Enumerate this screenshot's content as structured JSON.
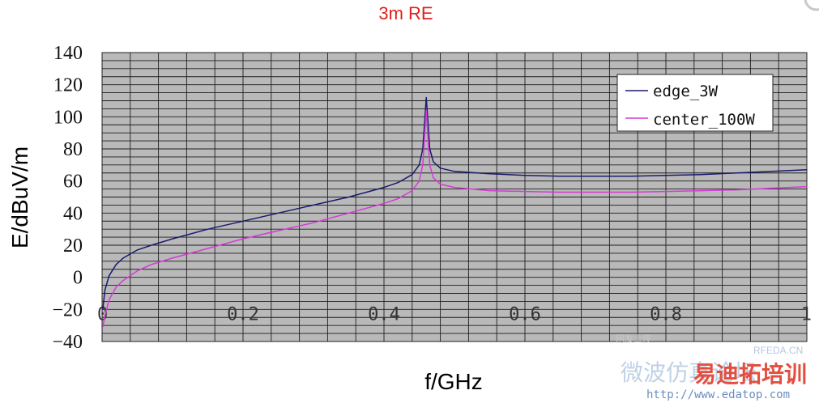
{
  "chart_data": {
    "type": "line",
    "title": "3m RE",
    "xlabel": "f/GHz",
    "ylabel": "E/dBuV/m",
    "xlim": [
      0,
      1
    ],
    "ylim": [
      -40,
      140
    ],
    "x_ticks": [
      0,
      0.2,
      0.4,
      0.6,
      0.8,
      1
    ],
    "x_tick_labels": [
      "0",
      "0.2",
      "0.4",
      "0.6",
      "0.8",
      "1"
    ],
    "y_ticks": [
      -40,
      -20,
      0,
      20,
      40,
      60,
      80,
      100,
      120,
      140
    ],
    "y_tick_labels": [
      "−40",
      "−20",
      "0",
      "20",
      "40",
      "60",
      "80",
      "100",
      "120",
      "140"
    ],
    "grid": true,
    "legend_position": "top-right",
    "series": [
      {
        "name": "edge_3W",
        "color": "#1a1a6e",
        "x": [
          0.001,
          0.004,
          0.01,
          0.02,
          0.03,
          0.05,
          0.07,
          0.1,
          0.15,
          0.2,
          0.25,
          0.3,
          0.35,
          0.4,
          0.42,
          0.44,
          0.45,
          0.455,
          0.46,
          0.465,
          0.47,
          0.48,
          0.5,
          0.55,
          0.6,
          0.65,
          0.7,
          0.75,
          0.8,
          0.85,
          0.9,
          0.95,
          1.0
        ],
        "y": [
          -20,
          -8,
          1,
          8,
          12,
          17,
          20,
          24,
          30,
          35,
          40,
          45,
          50,
          56,
          59,
          64,
          70,
          80,
          112,
          80,
          72,
          68,
          66,
          64.5,
          63.5,
          63,
          63,
          63,
          63.5,
          64,
          65,
          66,
          67
        ]
      },
      {
        "name": "center_100W",
        "color": "#d63ad6",
        "x": [
          0.001,
          0.004,
          0.01,
          0.02,
          0.03,
          0.05,
          0.07,
          0.1,
          0.15,
          0.2,
          0.25,
          0.3,
          0.35,
          0.4,
          0.42,
          0.44,
          0.45,
          0.455,
          0.46,
          0.465,
          0.47,
          0.48,
          0.5,
          0.55,
          0.6,
          0.65,
          0.7,
          0.75,
          0.8,
          0.85,
          0.9,
          0.95,
          1.0
        ],
        "y": [
          -31,
          -24,
          -14,
          -6,
          -2,
          4,
          8,
          12,
          18,
          24,
          29,
          34,
          40,
          46,
          49,
          54,
          60,
          70,
          104,
          70,
          62,
          58,
          56,
          54,
          53.5,
          53,
          53,
          53,
          53.5,
          54,
          54.5,
          55.5,
          56.5
        ]
      }
    ]
  },
  "watermark": {
    "cn_text": "微波仿真论坛",
    "brand_text": "易迪拓培训",
    "url_text": "http://www.edatop.com",
    "rfeda_text": "RFEDA.CN",
    "tagline_text": "网友上传"
  }
}
